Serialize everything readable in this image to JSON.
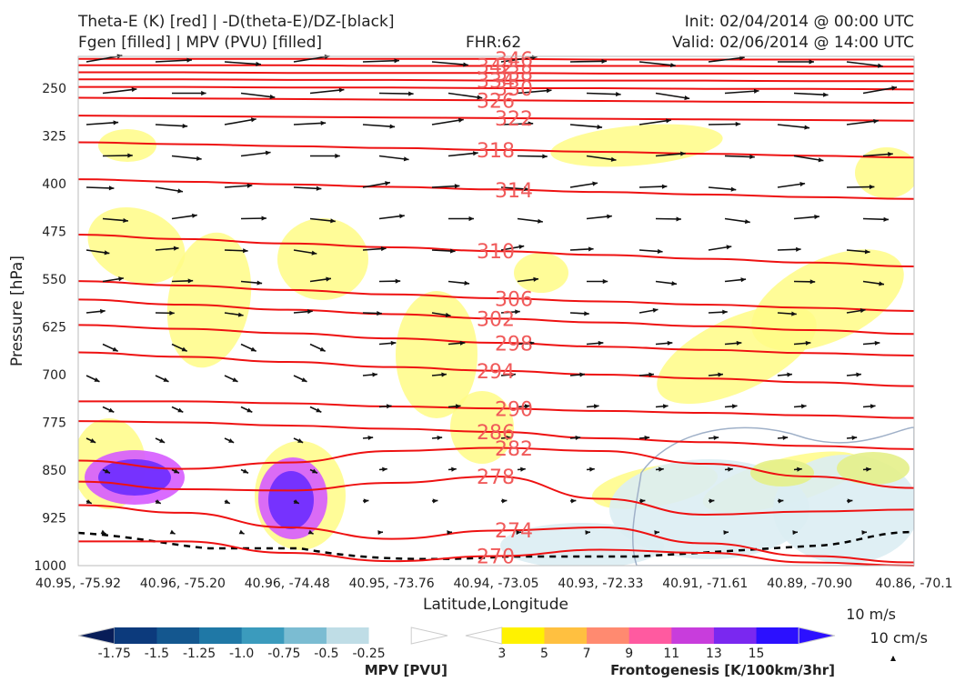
{
  "header": {
    "title_line1": "Theta-E (K) [red] | -D(theta-E)/DZ-[black]",
    "title_line2": "Fgen [filled] | MPV (PVU) [filled]",
    "fhr": "FHR:62",
    "init": "Init: 02/04/2014 @ 00:00 UTC",
    "valid": "Valid: 02/06/2014 @ 14:00 UTC"
  },
  "colors": {
    "theta_e": "#ee1111",
    "theta_e_label": "#f05a5a",
    "arrow": "#111111",
    "fgen_yellow": "#fffc86",
    "fgen_light_blue": "#dcedf3",
    "fgen_outline": "#9fb0c8",
    "mpv_purple": "#6a2cff",
    "mpv_pink": "#d65bff"
  },
  "chart_data": {
    "type": "cross-section",
    "xlabel": "Latitude,Longitude",
    "ylabel": "Pressure [hPa]",
    "ylim": [
      1000,
      200
    ],
    "y_ticks": [
      250,
      325,
      400,
      475,
      550,
      625,
      700,
      775,
      850,
      925,
      1000
    ],
    "x_ticks": [
      "40.95, -75.92",
      "40.96, -75.20",
      "40.96, -74.48",
      "40.95, -73.76",
      "40.94, -73.05",
      "40.93, -72.33",
      "40.91, -71.61",
      "40.89, -70.90",
      "40.86, -70.1"
    ],
    "theta_e_contours": [
      {
        "label": "270",
        "p": [
          962,
          962,
          980,
          993,
          985,
          975,
          980,
          995,
          1000
        ]
      },
      {
        "label": "274",
        "p": [
          905,
          917,
          940,
          958,
          945,
          940,
          965,
          985,
          995
        ]
      },
      {
        "label": "278",
        "p": [
          868,
          880,
          882,
          870,
          860,
          895,
          920,
          915,
          912
        ]
      },
      {
        "label": "282",
        "p": [
          835,
          848,
          838,
          820,
          815,
          820,
          840,
          860,
          878
        ]
      },
      {
        "label": "286",
        "p": [
          773,
          775,
          780,
          785,
          790,
          800,
          806,
          812,
          817
        ]
      },
      {
        "label": "290",
        "p": [
          742,
          742,
          745,
          750,
          753,
          757,
          760,
          764,
          768
        ]
      },
      {
        "label": "294",
        "p": [
          665,
          672,
          680,
          688,
          694,
          700,
          706,
          712,
          718
        ]
      },
      {
        "label": "298",
        "p": [
          622,
          628,
          635,
          643,
          650,
          656,
          661,
          666,
          670
        ]
      },
      {
        "label": "302",
        "p": [
          582,
          590,
          598,
          605,
          612,
          618,
          624,
          630,
          636
        ]
      },
      {
        "label": "306",
        "p": [
          553,
          560,
          567,
          574,
          580,
          585,
          590,
          595,
          600
        ]
      },
      {
        "label": "310",
        "p": [
          480,
          487,
          494,
          500,
          506,
          512,
          518,
          524,
          530
        ]
      },
      {
        "label": "314",
        "p": [
          393,
          397,
          401,
          405,
          409,
          413,
          417,
          421,
          424
        ]
      },
      {
        "label": "318",
        "p": [
          335,
          338,
          341,
          344,
          347,
          350,
          353,
          356,
          359
        ]
      },
      {
        "label": "322",
        "p": [
          293,
          294,
          295,
          296,
          297,
          298,
          299,
          300,
          301
        ]
      },
      {
        "label": "326",
        "p": [
          265,
          266,
          267,
          268,
          269,
          270,
          271,
          272,
          273
        ]
      },
      {
        "label": "330",
        "p": [
          248,
          248,
          249,
          249,
          250,
          250,
          251,
          251,
          252
        ]
      },
      {
        "label": "334",
        "p": [
          236,
          236,
          237,
          237,
          238,
          238,
          238,
          239,
          239
        ]
      },
      {
        "label": "338",
        "p": [
          225,
          225,
          226,
          226,
          226,
          227,
          227,
          227,
          227
        ]
      },
      {
        "label": "342",
        "p": [
          214,
          214,
          214,
          215,
          215,
          215,
          215,
          216,
          216
        ]
      },
      {
        "label": "346",
        "p": [
          204,
          204,
          204,
          204,
          204,
          205,
          205,
          205,
          205
        ]
      }
    ],
    "mpv_colorbar": {
      "label": "MPV [PVU]",
      "tick_labels": [
        "-1.75",
        "-1.5",
        "-1.25",
        "-1.0",
        "-0.75",
        "-0.5",
        "-0.25"
      ],
      "colors": [
        "#081d58",
        "#0c3a7c",
        "#14578f",
        "#1f78a6",
        "#3b9bbd",
        "#7bbcd2",
        "#bfdde6",
        "#ffffff"
      ]
    },
    "fgen_colorbar": {
      "label": "Frontogenesis [K/100km/3hr]",
      "tick_labels": [
        "3",
        "5",
        "7",
        "9",
        "11",
        "13",
        "15"
      ],
      "colors": [
        "#ffffff",
        "#fff200",
        "#ffc040",
        "#ff8a70",
        "#ff5aa0",
        "#c83ddc",
        "#7a28f0",
        "#2c10ff"
      ]
    },
    "vector_key": {
      "top": "10 m/s",
      "bottom": "10 cm/s"
    }
  }
}
